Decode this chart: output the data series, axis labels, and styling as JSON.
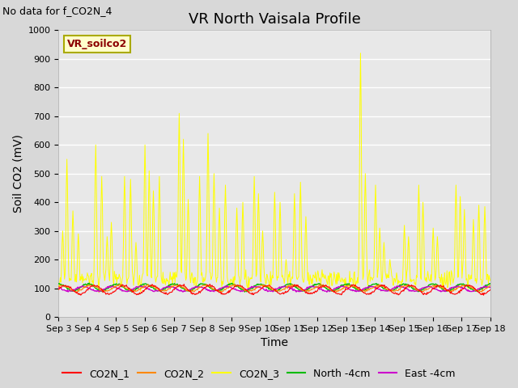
{
  "title": "VR North Vaisala Profile",
  "subtitle": "No data for f_CO2N_4",
  "ylabel": "Soil CO2 (mV)",
  "xlabel": "Time",
  "ylim": [
    0,
    1000
  ],
  "xlim": [
    0,
    15
  ],
  "x_tick_labels": [
    "Sep 3",
    "Sep 4",
    "Sep 5",
    "Sep 6",
    "Sep 7",
    "Sep 8",
    "Sep 9",
    "Sep 10",
    "Sep 11",
    "Sep 12",
    "Sep 13",
    "Sep 14",
    "Sep 15",
    "Sep 16",
    "Sep 17",
    "Sep 18"
  ],
  "figure_bg_color": "#d8d8d8",
  "plot_bg_color": "#e8e8e8",
  "grid_color": "#ffffff",
  "legend_colors": [
    "#ff0000",
    "#ff8800",
    "#ffff00",
    "#00bb00",
    "#cc00cc"
  ],
  "legend_entries": [
    "CO2N_1",
    "CO2N_2",
    "CO2N_3",
    "North -4cm",
    "East -4cm"
  ],
  "inset_label": "VR_soilco2",
  "inset_label_color": "#8b0000",
  "inset_box_facecolor": "#ffffcc",
  "inset_box_edgecolor": "#aaaa00",
  "title_fontsize": 13,
  "subtitle_fontsize": 9,
  "axis_label_fontsize": 10,
  "tick_fontsize": 8,
  "legend_fontsize": 9
}
